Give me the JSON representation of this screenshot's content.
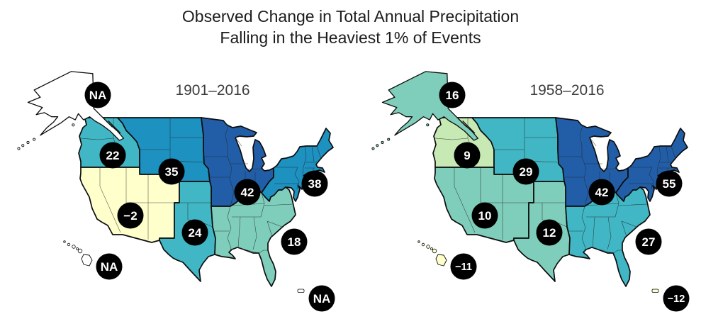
{
  "title": {
    "line1": "Observed Change in Total Annual Precipitation",
    "line2": "Falling in the Heaviest 1% of Events"
  },
  "badge": {
    "fill": "#000000",
    "text_color": "#ffffff"
  },
  "map_base": {
    "na_fill": "#ffffff",
    "border_color": "#0d0d0d",
    "background": "#ffffff"
  },
  "maps": [
    {
      "period": "1901–2016",
      "regions": [
        {
          "key": "alaska",
          "name": "Alaska",
          "value": "NA",
          "fill": "#ffffff"
        },
        {
          "key": "northwest",
          "name": "Northwest",
          "value": "22",
          "fill": "#41b6c4"
        },
        {
          "key": "n_great_plains",
          "name": "Northern Great Plains",
          "value": "35",
          "fill": "#1d91c0"
        },
        {
          "key": "midwest",
          "name": "Midwest",
          "value": "42",
          "fill": "#225ea8"
        },
        {
          "key": "northeast",
          "name": "Northeast",
          "value": "38",
          "fill": "#1d91c0"
        },
        {
          "key": "southwest",
          "name": "Southwest",
          "value": "−2",
          "fill": "#ffffcc"
        },
        {
          "key": "s_great_plains",
          "name": "Southern Great Plains",
          "value": "24",
          "fill": "#41b6c4"
        },
        {
          "key": "southeast",
          "name": "Southeast",
          "value": "18",
          "fill": "#7fcdbb"
        },
        {
          "key": "hawaii",
          "name": "Hawaii",
          "value": "NA",
          "fill": "#ffffff"
        },
        {
          "key": "caribbean",
          "name": "Caribbean",
          "value": "NA",
          "fill": "#ffffff"
        }
      ]
    },
    {
      "period": "1958–2016",
      "regions": [
        {
          "key": "alaska",
          "name": "Alaska",
          "value": "16",
          "fill": "#7fcdbb"
        },
        {
          "key": "northwest",
          "name": "Northwest",
          "value": "9",
          "fill": "#c7e9b4"
        },
        {
          "key": "n_great_plains",
          "name": "Northern Great Plains",
          "value": "29",
          "fill": "#41b6c4"
        },
        {
          "key": "midwest",
          "name": "Midwest",
          "value": "42",
          "fill": "#225ea8"
        },
        {
          "key": "northeast",
          "name": "Northeast",
          "value": "55",
          "fill": "#225ea8"
        },
        {
          "key": "southwest",
          "name": "Southwest",
          "value": "10",
          "fill": "#7fcdbb"
        },
        {
          "key": "s_great_plains",
          "name": "Southern Great Plains",
          "value": "12",
          "fill": "#7fcdbb"
        },
        {
          "key": "southeast",
          "name": "Southeast",
          "value": "27",
          "fill": "#41b6c4"
        },
        {
          "key": "hawaii",
          "name": "Hawaii",
          "value": "−11",
          "fill": "#ffffcc"
        },
        {
          "key": "caribbean",
          "name": "Caribbean",
          "value": "−12",
          "fill": "#ffffcc"
        }
      ]
    }
  ],
  "chart_data": {
    "type": "heatmap",
    "subtype": "choropleth-map-pair",
    "title": "Observed Change in Total Annual Precipitation Falling in the Heaviest 1% of Events",
    "categories": [
      "Alaska",
      "Northwest",
      "Northern Great Plains",
      "Midwest",
      "Northeast",
      "Southwest",
      "Southern Great Plains",
      "Southeast",
      "Hawaii",
      "Caribbean"
    ],
    "series": [
      {
        "name": "1901–2016",
        "values": [
          null,
          22,
          35,
          42,
          38,
          -2,
          24,
          18,
          null,
          null
        ],
        "labels": [
          "NA",
          "22",
          "35",
          "42",
          "38",
          "−2",
          "24",
          "18",
          "NA",
          "NA"
        ]
      },
      {
        "name": "1958–2016",
        "values": [
          16,
          9,
          29,
          42,
          55,
          10,
          12,
          27,
          -11,
          -12
        ],
        "labels": [
          "16",
          "9",
          "29",
          "42",
          "55",
          "10",
          "12",
          "27",
          "−11",
          "−12"
        ]
      }
    ],
    "region_colors": [
      [
        "#ffffff",
        "#41b6c4",
        "#1d91c0",
        "#225ea8",
        "#1d91c0",
        "#ffffcc",
        "#41b6c4",
        "#7fcdbb",
        "#ffffff",
        "#ffffff"
      ],
      [
        "#7fcdbb",
        "#c7e9b4",
        "#41b6c4",
        "#225ea8",
        "#225ea8",
        "#7fcdbb",
        "#7fcdbb",
        "#41b6c4",
        "#ffffcc",
        "#ffffcc"
      ]
    ],
    "legend_position": "none",
    "grid": false
  }
}
